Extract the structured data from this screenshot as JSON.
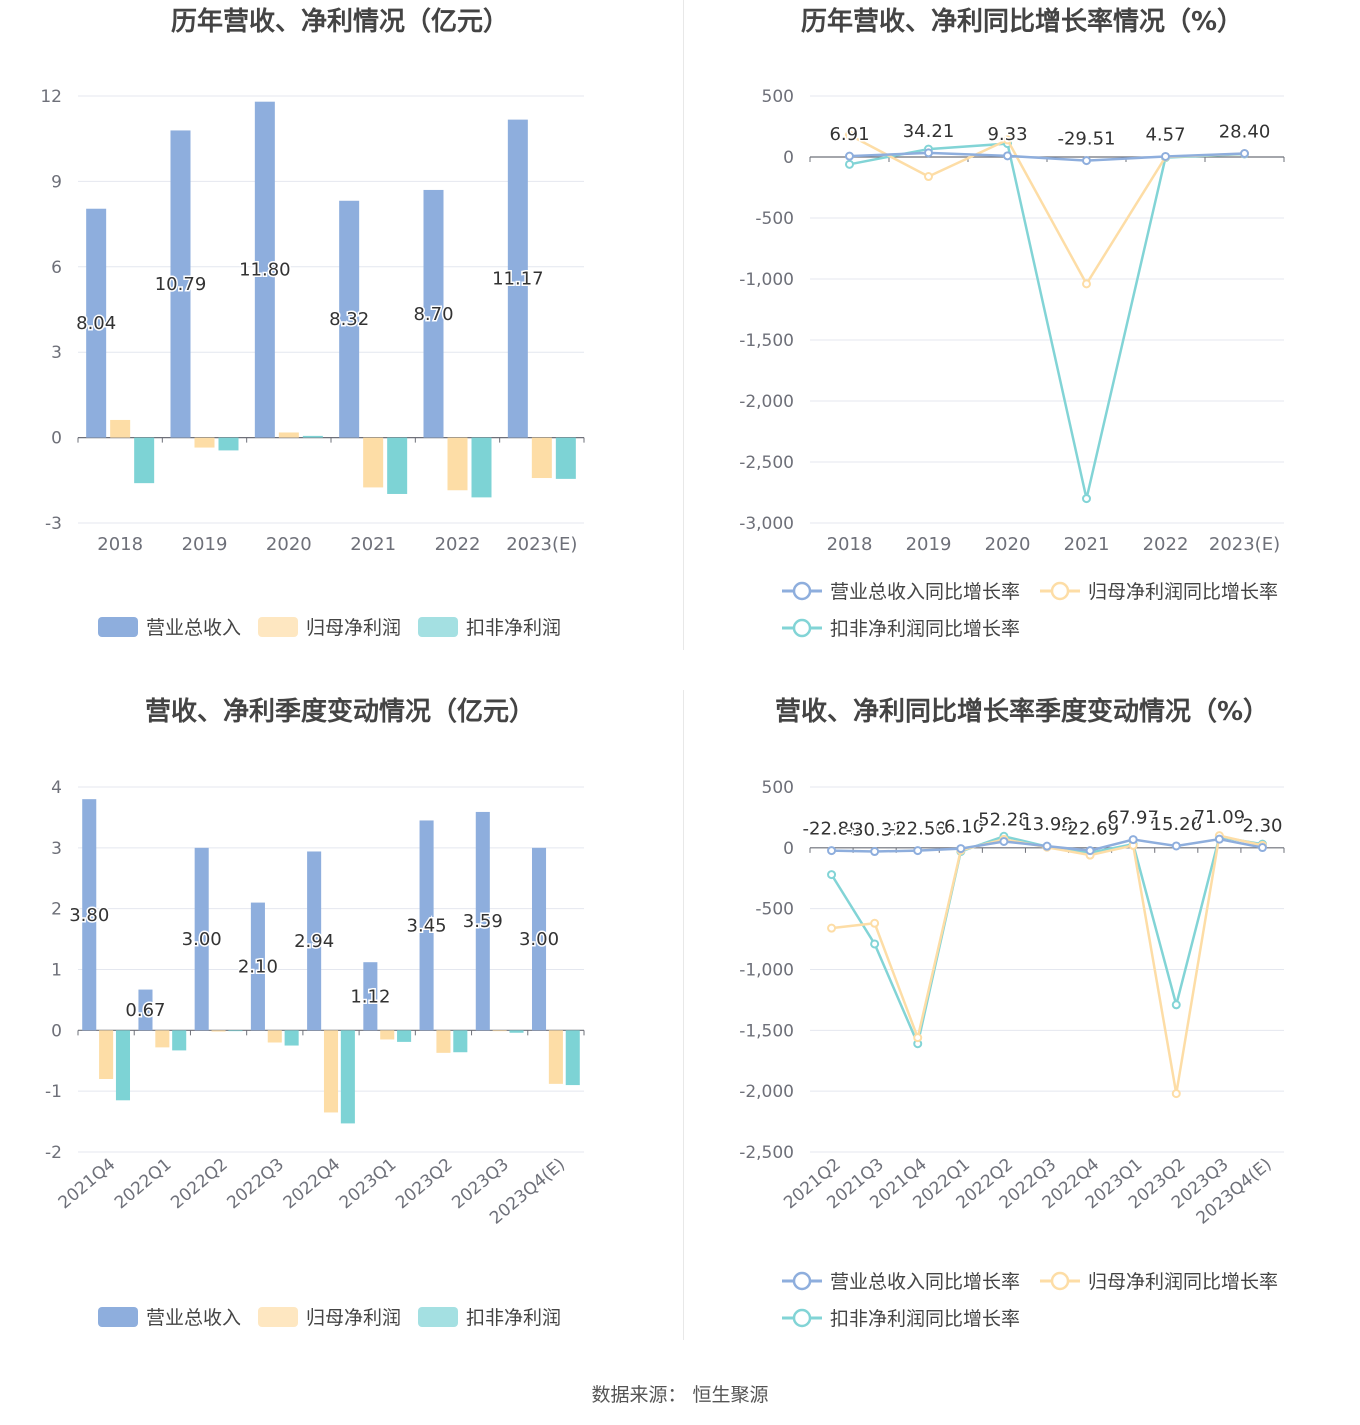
{
  "colors": {
    "revenue": "#8eaedd",
    "net_profit": "#fddda6",
    "deducted_profit": "#7dd3d5",
    "revenue_line": "#8eaedd",
    "net_profit_line": "#fddda6",
    "deducted_profit_line": "#82d4d6",
    "grid": "#e4e7ef",
    "axis": "#6e7079"
  },
  "source": "数据来源：  恒生聚源",
  "chart_data": [
    {
      "type": "bar",
      "title": "历年营收、净利情况（亿元）",
      "categories": [
        "2018",
        "2019",
        "2020",
        "2021",
        "2022",
        "2023(E)"
      ],
      "ylim": [
        -3,
        12
      ],
      "yticks": [
        "-3",
        "0",
        "3",
        "6",
        "9",
        "12"
      ],
      "ytick_values": [
        -3,
        0,
        3,
        6,
        9,
        12
      ],
      "series": [
        {
          "name": "营业总收入",
          "values": [
            8.04,
            10.79,
            11.8,
            8.32,
            8.7,
            11.17
          ],
          "labels": [
            "8.04",
            "10.79",
            "11.80",
            "8.32",
            "8.70",
            "11.17"
          ]
        },
        {
          "name": "归母净利润",
          "values": [
            0.62,
            -0.35,
            0.18,
            -1.75,
            -1.85,
            -1.42
          ]
        },
        {
          "name": "扣非净利润",
          "values": [
            -1.6,
            -0.45,
            0.06,
            -1.98,
            -2.1,
            -1.45
          ]
        }
      ],
      "legend": "bottom",
      "grid": true
    },
    {
      "type": "line",
      "title": "历年营收、净利同比增长率情况（%）",
      "categories": [
        "2018",
        "2019",
        "2020",
        "2021",
        "2022",
        "2023(E)"
      ],
      "ylim": [
        -3000,
        500
      ],
      "yticks": [
        "-3,000",
        "-2,500",
        "-2,000",
        "-1,500",
        "-1,000",
        "-500",
        "0",
        "500"
      ],
      "ytick_values": [
        -3000,
        -2500,
        -2000,
        -1500,
        -1000,
        -500,
        0,
        500
      ],
      "series": [
        {
          "name": "营业总收入同比增长率",
          "values": [
            6.91,
            34.21,
            9.33,
            -29.51,
            4.57,
            28.4
          ],
          "labels": [
            "6.91",
            "34.21",
            "9.33",
            "-29.51",
            "4.57",
            "28.40"
          ]
        },
        {
          "name": "归母净利润同比增长率",
          "values": [
            180,
            -160,
            140,
            -1040,
            0,
            28
          ]
        },
        {
          "name": "扣非净利润同比增长率",
          "values": [
            -60,
            65,
            110,
            -2800,
            -5,
            25
          ]
        }
      ],
      "legend": "bottom",
      "grid": true
    },
    {
      "type": "bar",
      "title": "营收、净利季度变动情况（亿元）",
      "categories": [
        "2021Q4",
        "2022Q1",
        "2022Q2",
        "2022Q3",
        "2022Q4",
        "2023Q1",
        "2023Q2",
        "2023Q3",
        "2023Q4(E)"
      ],
      "ylim": [
        -2,
        4
      ],
      "yticks": [
        "-2",
        "-1",
        "0",
        "1",
        "2",
        "3",
        "4"
      ],
      "ytick_values": [
        -2,
        -1,
        0,
        1,
        2,
        3,
        4
      ],
      "series": [
        {
          "name": "营业总收入",
          "values": [
            3.8,
            0.67,
            3.0,
            2.1,
            2.94,
            1.12,
            3.45,
            3.59,
            3.0
          ],
          "labels": [
            "3.80",
            "0.67",
            "3.00",
            "2.10",
            "2.94",
            "1.12",
            "3.45",
            "3.59",
            "3.00"
          ]
        },
        {
          "name": "归母净利润",
          "values": [
            -0.8,
            -0.28,
            -0.02,
            -0.2,
            -1.35,
            -0.15,
            -0.37,
            0.0,
            -0.88
          ]
        },
        {
          "name": "扣非净利润",
          "values": [
            -1.15,
            -0.33,
            -0.01,
            -0.25,
            -1.53,
            -0.19,
            -0.36,
            -0.04,
            -0.9
          ]
        }
      ],
      "legend": "bottom",
      "grid": true
    },
    {
      "type": "line",
      "title": "营收、净利同比增长率季度变动情况（%）",
      "categories": [
        "2021Q2",
        "2021Q3",
        "2021Q4",
        "2022Q1",
        "2022Q2",
        "2022Q3",
        "2022Q4",
        "2023Q1",
        "2023Q2",
        "2023Q3",
        "2023Q4(E)"
      ],
      "ylim": [
        -2500,
        500
      ],
      "yticks": [
        "-2,500",
        "-2,000",
        "-1,500",
        "-1,000",
        "-500",
        "0",
        "500"
      ],
      "ytick_values": [
        -2500,
        -2000,
        -1500,
        -1000,
        -500,
        0,
        500
      ],
      "series": [
        {
          "name": "营业总收入同比增长率",
          "values": [
            -22.89,
            -30.31,
            -22.5,
            -6.1,
            52.28,
            13.98,
            -22.69,
            67.97,
            15.26,
            71.09,
            2.3
          ],
          "labels": [
            "-22.89",
            "-30.31",
            "-22.50",
            "-6.10",
            "52.28",
            "13.98",
            "-22.69",
            "67.97",
            "15.26",
            "71.09",
            "2.30"
          ]
        },
        {
          "name": "归母净利润同比增长率",
          "values": [
            -660,
            -620,
            -1560,
            -20,
            70,
            5,
            -60,
            20,
            -2020,
            100,
            20
          ]
        },
        {
          "name": "扣非净利润同比增长率",
          "values": [
            -220,
            -790,
            -1610,
            -30,
            95,
            10,
            -40,
            30,
            -1290,
            90,
            30
          ]
        }
      ],
      "legend": "bottom",
      "grid": true
    }
  ]
}
